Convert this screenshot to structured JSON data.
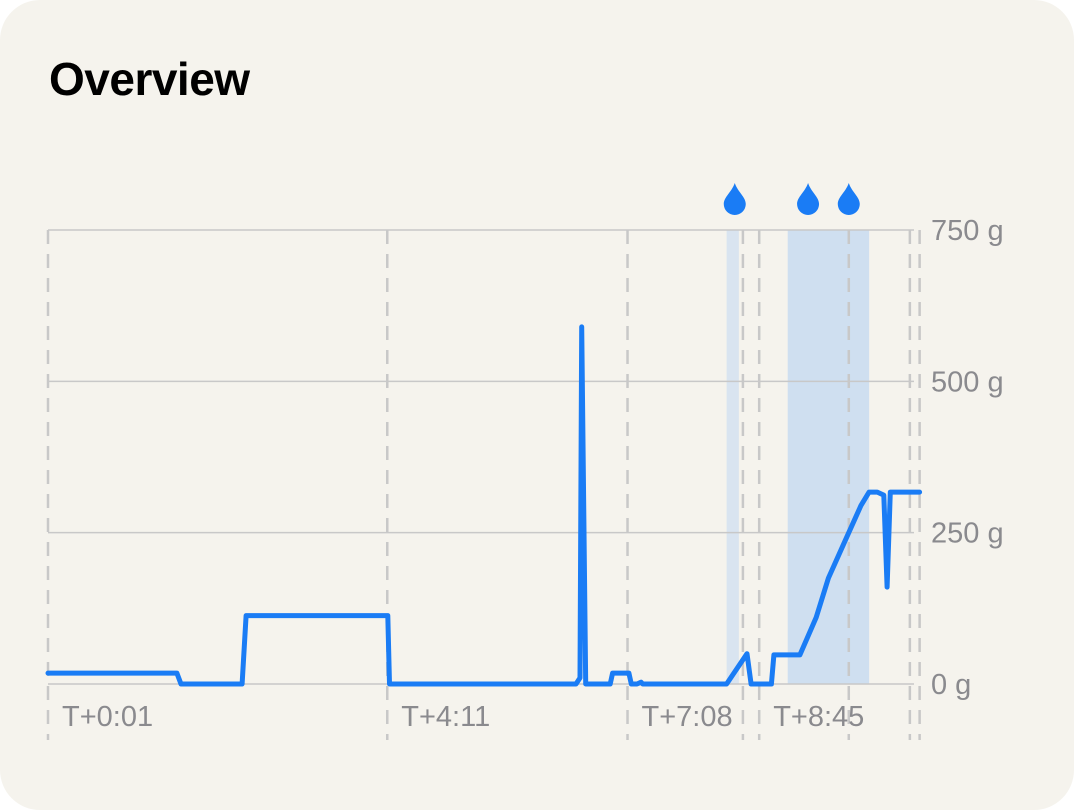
{
  "card": {
    "title": "Overview"
  },
  "colors": {
    "background": "#f5f3ed",
    "line": "#1a7cf5",
    "band": "#cfdff0",
    "grid": "#c8c8c8",
    "axis_text": "#8a8a8e",
    "drop": "#1a7cf5"
  },
  "chart_data": {
    "type": "line",
    "title": "Overview",
    "xlabel": "",
    "ylabel": "",
    "x_unit": "hours",
    "ylim": [
      0,
      750
    ],
    "xlim": [
      0.017,
      10.7
    ],
    "y_ticks": [
      {
        "value": 0,
        "label": "0 g"
      },
      {
        "value": 250,
        "label": "250 g"
      },
      {
        "value": 500,
        "label": "500 g"
      },
      {
        "value": 750,
        "label": "750 g"
      }
    ],
    "x_ticks": [
      {
        "value": 0.017,
        "label": "T+0:01"
      },
      {
        "value": 4.183,
        "label": "T+4:11"
      },
      {
        "value": 7.133,
        "label": "T+7:08"
      },
      {
        "value": 8.75,
        "label": "T+8:45"
      }
    ],
    "grid": true,
    "legend": "none",
    "dashed_guides": [
      0.017,
      4.183,
      7.133,
      8.75,
      8.55,
      9.85,
      10.6,
      10.72
    ],
    "shaded_ranges": [
      [
        8.35,
        8.5
      ],
      [
        9.1,
        10.1
      ]
    ],
    "drop_markers": [
      8.45,
      9.35,
      9.85
    ],
    "series": [
      {
        "values": [
          {
            "x": 0.017,
            "y": 18
          },
          {
            "x": 1.6,
            "y": 18
          },
          {
            "x": 1.65,
            "y": 0
          },
          {
            "x": 2.4,
            "y": 0
          },
          {
            "x": 2.45,
            "y": 113
          },
          {
            "x": 4.19,
            "y": 113
          },
          {
            "x": 4.21,
            "y": 0
          },
          {
            "x": 6.5,
            "y": 0
          },
          {
            "x": 6.55,
            "y": 10
          },
          {
            "x": 6.57,
            "y": 590
          },
          {
            "x": 6.62,
            "y": 0
          },
          {
            "x": 6.92,
            "y": 0
          },
          {
            "x": 6.95,
            "y": 18
          },
          {
            "x": 7.15,
            "y": 18
          },
          {
            "x": 7.18,
            "y": 0
          },
          {
            "x": 7.25,
            "y": 0
          },
          {
            "x": 7.3,
            "y": 3
          },
          {
            "x": 7.32,
            "y": 0
          },
          {
            "x": 8.35,
            "y": 0
          },
          {
            "x": 8.6,
            "y": 50
          },
          {
            "x": 8.65,
            "y": 0
          },
          {
            "x": 8.9,
            "y": 0
          },
          {
            "x": 8.93,
            "y": 48
          },
          {
            "x": 9.25,
            "y": 48
          },
          {
            "x": 9.45,
            "y": 110
          },
          {
            "x": 9.6,
            "y": 175
          },
          {
            "x": 9.8,
            "y": 235
          },
          {
            "x": 10.0,
            "y": 295
          },
          {
            "x": 10.1,
            "y": 317
          },
          {
            "x": 10.2,
            "y": 317
          },
          {
            "x": 10.28,
            "y": 312
          },
          {
            "x": 10.32,
            "y": 160
          },
          {
            "x": 10.36,
            "y": 317
          },
          {
            "x": 10.72,
            "y": 317
          }
        ]
      }
    ]
  }
}
